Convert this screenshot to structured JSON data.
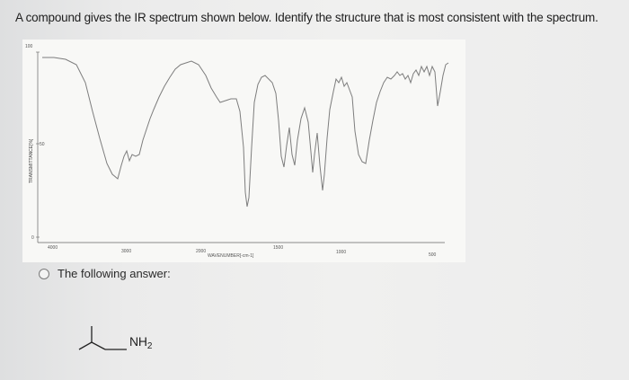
{
  "question": {
    "text": "A compound gives the IR spectrum shown below. Identify the structure that is most consistent with the spectrum."
  },
  "spectrum": {
    "y_axis": {
      "label": "TRANSMITTANCE[%]",
      "ticks": [
        "100",
        "50",
        "0"
      ]
    },
    "x_axis": {
      "label": "WAVENUMBER[-cm-1]",
      "ticks": [
        "4000",
        "3000",
        "2000",
        "1500",
        "1000",
        "500"
      ]
    }
  },
  "choices": [
    {
      "label": "The following answer:"
    }
  ],
  "structure": {
    "label_main": "NH",
    "label_sub": "2"
  }
}
